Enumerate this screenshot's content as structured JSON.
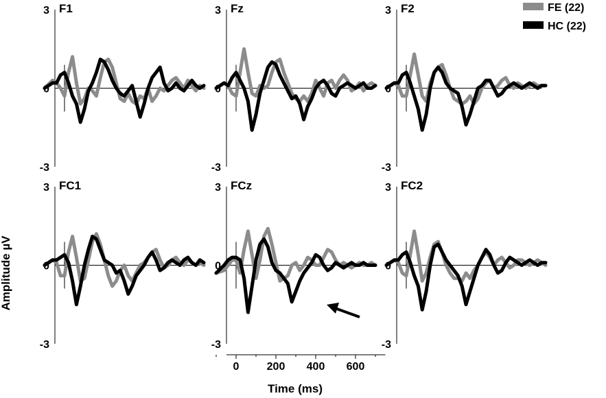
{
  "figure": {
    "ylabel": "Amplitude µV",
    "xlabel": "Time (ms)",
    "legend": [
      {
        "name": "FE (22)",
        "color": "#8c8c8c"
      },
      {
        "name": "HC (22)",
        "color": "#000000"
      }
    ]
  },
  "chart_data": [
    {
      "type": "line",
      "title": "F1",
      "xlim": [
        -100,
        750
      ],
      "ylim": [
        -3,
        3
      ],
      "yticks": [
        "3",
        "0",
        "-3"
      ],
      "series": [
        {
          "name": "FE (22)",
          "color": "#8c8c8c",
          "x": [
            -100,
            -60,
            -40,
            -20,
            0,
            20,
            40,
            60,
            80,
            100,
            120,
            140,
            160,
            180,
            200,
            220,
            240,
            260,
            280,
            300,
            320,
            340,
            360,
            380,
            400,
            420,
            440,
            460,
            480,
            500,
            520,
            540,
            560,
            580,
            600,
            620,
            640,
            660,
            680,
            700
          ],
          "y": [
            0.0,
            0.3,
            0.2,
            0.0,
            -0.3,
            0.6,
            1.2,
            0.2,
            -0.6,
            -0.4,
            0.0,
            -0.1,
            -0.3,
            0.4,
            1.0,
            1.1,
            0.8,
            0.2,
            -0.4,
            -0.5,
            -0.2,
            -0.5,
            -0.6,
            -0.3,
            -0.4,
            0.0,
            -0.5,
            -0.3,
            0.0,
            -0.1,
            0.1,
            0.3,
            0.4,
            0.2,
            0.0,
            0.3,
            0.1,
            -0.1,
            0.1,
            0.0
          ]
        },
        {
          "name": "HC (22)",
          "color": "#000000",
          "x": [
            -100,
            -60,
            -40,
            -20,
            0,
            20,
            40,
            60,
            80,
            100,
            120,
            140,
            160,
            180,
            200,
            220,
            240,
            260,
            280,
            300,
            320,
            340,
            360,
            380,
            400,
            420,
            440,
            460,
            480,
            500,
            520,
            540,
            560,
            580,
            600,
            620,
            640,
            660,
            680,
            700
          ],
          "y": [
            0.0,
            0.2,
            0.2,
            0.5,
            0.6,
            0.2,
            -0.3,
            -0.6,
            -1.3,
            -0.8,
            -0.1,
            0.2,
            0.6,
            1.1,
            1.0,
            0.7,
            0.3,
            0.0,
            -0.2,
            -0.3,
            -0.1,
            0.1,
            -0.5,
            -1.1,
            -0.6,
            0.0,
            0.4,
            0.6,
            0.8,
            0.2,
            -0.1,
            0.0,
            0.2,
            0.0,
            -0.1,
            0.1,
            0.3,
            0.1,
            0.0,
            0.1
          ]
        }
      ]
    },
    {
      "type": "line",
      "title": "Fz",
      "xlim": [
        -100,
        750
      ],
      "ylim": [
        -3,
        3
      ],
      "yticks": [
        "3",
        "0",
        "-3"
      ],
      "series": [
        {
          "name": "FE (22)",
          "color": "#8c8c8c",
          "x": [
            -100,
            -60,
            -40,
            -20,
            0,
            20,
            40,
            60,
            80,
            100,
            120,
            140,
            160,
            180,
            200,
            220,
            240,
            260,
            280,
            300,
            320,
            340,
            360,
            380,
            400,
            420,
            440,
            460,
            480,
            500,
            520,
            540,
            560,
            580,
            600,
            620,
            640,
            660,
            680,
            700
          ],
          "y": [
            0.0,
            0.2,
            0.1,
            -0.2,
            -0.3,
            0.6,
            1.5,
            0.6,
            -0.2,
            -0.3,
            0.1,
            0.0,
            0.1,
            0.6,
            1.0,
            1.1,
            0.6,
            0.2,
            -0.2,
            -0.4,
            -0.5,
            -0.3,
            -0.5,
            -0.2,
            0.3,
            0.0,
            -0.3,
            0.2,
            0.3,
            0.0,
            0.3,
            0.5,
            0.3,
            -0.1,
            0.0,
            0.2,
            -0.1,
            0.1,
            0.2,
            0.1
          ]
        },
        {
          "name": "HC (22)",
          "color": "#000000",
          "x": [
            -100,
            -60,
            -40,
            -20,
            0,
            20,
            40,
            60,
            80,
            100,
            120,
            140,
            160,
            180,
            200,
            220,
            240,
            260,
            280,
            300,
            320,
            340,
            360,
            380,
            400,
            420,
            440,
            460,
            480,
            500,
            520,
            540,
            560,
            580,
            600,
            620,
            640,
            660,
            680,
            700
          ],
          "y": [
            0.0,
            0.2,
            0.1,
            0.4,
            0.6,
            0.3,
            0.0,
            -0.5,
            -1.6,
            -1.0,
            -0.2,
            0.3,
            0.8,
            1.0,
            0.9,
            0.5,
            0.2,
            -0.1,
            -0.4,
            -0.3,
            -0.6,
            -1.2,
            -0.7,
            -0.4,
            0.0,
            0.2,
            0.3,
            0.1,
            -0.2,
            -0.3,
            0.0,
            0.1,
            0.2,
            0.1,
            0.0,
            0.1,
            0.2,
            0.0,
            0.0,
            0.1
          ]
        }
      ]
    },
    {
      "type": "line",
      "title": "F2",
      "xlim": [
        -100,
        750
      ],
      "ylim": [
        -3,
        3
      ],
      "yticks": [
        "3",
        "0",
        "-3"
      ],
      "series": [
        {
          "name": "FE (22)",
          "color": "#8c8c8c",
          "x": [
            -100,
            -60,
            -40,
            -20,
            0,
            20,
            40,
            60,
            80,
            100,
            120,
            140,
            160,
            180,
            200,
            220,
            240,
            260,
            280,
            300,
            320,
            340,
            360,
            380,
            400,
            420,
            440,
            460,
            480,
            500,
            520,
            540,
            560,
            580,
            600,
            620,
            640,
            660,
            680,
            700
          ],
          "y": [
            0.0,
            0.2,
            0.1,
            -0.3,
            -0.3,
            0.5,
            1.3,
            0.5,
            -0.3,
            -0.5,
            0.2,
            0.6,
            0.8,
            0.9,
            0.5,
            0.0,
            -0.4,
            -0.5,
            -0.6,
            -0.5,
            -0.3,
            -0.6,
            -0.4,
            0.0,
            0.2,
            0.3,
            0.0,
            0.1,
            0.3,
            0.4,
            0.1,
            0.0,
            0.2,
            0.1,
            0.0,
            0.1,
            0.2,
            0.1,
            0.1,
            0.1
          ]
        },
        {
          "name": "HC (22)",
          "color": "#000000",
          "x": [
            -100,
            -60,
            -40,
            -20,
            0,
            20,
            40,
            60,
            80,
            100,
            120,
            140,
            160,
            180,
            200,
            220,
            240,
            260,
            280,
            300,
            320,
            340,
            360,
            380,
            400,
            420,
            440,
            460,
            480,
            500,
            520,
            540,
            560,
            580,
            600,
            620,
            640,
            660,
            680,
            700
          ],
          "y": [
            0.0,
            0.2,
            0.2,
            0.5,
            0.6,
            0.2,
            -0.3,
            -0.8,
            -1.6,
            -1.0,
            0.0,
            0.6,
            0.8,
            0.6,
            0.2,
            0.0,
            -0.1,
            -0.2,
            -0.7,
            -1.4,
            -1.0,
            -0.5,
            0.0,
            0.1,
            0.3,
            0.3,
            0.0,
            -0.3,
            -0.2,
            0.0,
            0.1,
            0.2,
            0.1,
            0.0,
            0.1,
            0.2,
            0.1,
            0.0,
            0.1,
            0.1
          ]
        }
      ]
    },
    {
      "type": "line",
      "title": "FC1",
      "xlim": [
        -100,
        750
      ],
      "ylim": [
        -3,
        3
      ],
      "yticks": [
        "3",
        "0",
        "-3"
      ],
      "series": [
        {
          "name": "FE (22)",
          "color": "#8c8c8c",
          "x": [
            -100,
            -60,
            -40,
            -20,
            0,
            20,
            40,
            60,
            80,
            100,
            120,
            140,
            160,
            180,
            200,
            220,
            240,
            260,
            280,
            300,
            320,
            340,
            360,
            380,
            400,
            420,
            440,
            460,
            480,
            500,
            520,
            540,
            560,
            580,
            600,
            620,
            640,
            660,
            680,
            700
          ],
          "y": [
            0.0,
            0.2,
            0.1,
            -0.4,
            -0.4,
            0.5,
            1.1,
            0.3,
            -0.6,
            -0.5,
            0.2,
            0.9,
            1.2,
            0.8,
            0.2,
            -0.4,
            -0.8,
            -0.6,
            -0.2,
            0.0,
            -0.4,
            -0.6,
            -0.3,
            0.0,
            0.1,
            0.3,
            0.5,
            0.6,
            0.2,
            -0.1,
            0.0,
            0.2,
            0.3,
            0.1,
            0.0,
            0.2,
            0.1,
            0.0,
            0.1,
            0.0
          ]
        },
        {
          "name": "HC (22)",
          "color": "#000000",
          "x": [
            -100,
            -60,
            -40,
            -20,
            0,
            20,
            40,
            60,
            80,
            100,
            120,
            140,
            160,
            180,
            200,
            220,
            240,
            260,
            280,
            300,
            320,
            340,
            360,
            380,
            400,
            420,
            440,
            460,
            480,
            500,
            520,
            540,
            560,
            580,
            600,
            620,
            640,
            660,
            680,
            700
          ],
          "y": [
            0.0,
            0.2,
            0.2,
            0.3,
            0.4,
            0.1,
            -0.6,
            -1.5,
            -0.8,
            0.0,
            0.6,
            1.1,
            1.0,
            0.6,
            0.2,
            0.1,
            0.0,
            -0.3,
            -0.2,
            -0.6,
            -1.1,
            -0.8,
            -0.4,
            -0.2,
            0.0,
            0.3,
            0.5,
            0.2,
            -0.2,
            -0.1,
            0.1,
            0.2,
            0.1,
            0.0,
            0.2,
            0.3,
            0.1,
            0.0,
            0.2,
            0.1
          ]
        }
      ]
    },
    {
      "type": "line",
      "title": "FCz",
      "xlim": [
        -100,
        750
      ],
      "ylim": [
        -3,
        3
      ],
      "yticks": [
        "3",
        "0",
        "-3"
      ],
      "xticks": [
        0,
        200,
        400,
        600
      ],
      "xlabel": "Time (ms)",
      "series": [
        {
          "name": "FE (22)",
          "color": "#8c8c8c",
          "x": [
            -100,
            -60,
            -40,
            -20,
            0,
            20,
            40,
            60,
            80,
            100,
            120,
            140,
            160,
            180,
            200,
            220,
            240,
            260,
            280,
            300,
            320,
            340,
            360,
            380,
            400,
            420,
            440,
            460,
            480,
            500,
            520,
            540,
            560,
            580,
            600,
            620,
            640,
            660,
            680,
            700
          ],
          "y": [
            -0.3,
            -0.2,
            0.0,
            0.2,
            0.2,
            -0.3,
            0.6,
            1.3,
            0.4,
            -0.5,
            0.2,
            1.1,
            1.4,
            0.8,
            0.1,
            -0.6,
            -0.5,
            -0.4,
            0.0,
            0.1,
            -0.2,
            0.0,
            0.3,
            0.2,
            0.0,
            0.0,
            0.3,
            0.6,
            0.5,
            0.2,
            0.0,
            0.1,
            0.0,
            -0.1,
            0.0,
            0.1,
            0.0,
            0.0,
            0.1,
            0.0
          ]
        },
        {
          "name": "HC (22)",
          "color": "#000000",
          "x": [
            -100,
            -60,
            -40,
            -20,
            0,
            20,
            40,
            60,
            80,
            100,
            120,
            140,
            160,
            180,
            200,
            220,
            240,
            260,
            280,
            300,
            320,
            340,
            360,
            380,
            400,
            420,
            440,
            460,
            480,
            500,
            520,
            540,
            560,
            580,
            600,
            620,
            640,
            660,
            680,
            700
          ],
          "y": [
            -0.3,
            0.0,
            0.2,
            0.3,
            0.3,
            0.2,
            -0.5,
            -1.8,
            -0.8,
            0.2,
            0.8,
            1.0,
            0.7,
            0.1,
            -0.2,
            -0.3,
            -0.5,
            -0.7,
            -1.4,
            -1.0,
            -0.6,
            -0.3,
            -0.1,
            0.1,
            0.4,
            0.3,
            0.0,
            -0.2,
            -0.1,
            0.1,
            0.0,
            -0.1,
            0.0,
            0.1,
            0.0,
            0.0,
            0.1,
            0.0,
            0.0,
            0.0
          ]
        }
      ]
    },
    {
      "type": "line",
      "title": "FC2",
      "xlim": [
        -100,
        750
      ],
      "ylim": [
        -3,
        3
      ],
      "yticks": [
        "3",
        "0",
        "-3"
      ],
      "series": [
        {
          "name": "FE (22)",
          "color": "#8c8c8c",
          "x": [
            -100,
            -60,
            -40,
            -20,
            0,
            20,
            40,
            60,
            80,
            100,
            120,
            140,
            160,
            180,
            200,
            220,
            240,
            260,
            280,
            300,
            320,
            340,
            360,
            380,
            400,
            420,
            440,
            460,
            480,
            500,
            520,
            540,
            560,
            580,
            600,
            620,
            640,
            660,
            680,
            700
          ],
          "y": [
            0.0,
            0.2,
            0.1,
            -0.3,
            -0.4,
            0.4,
            1.3,
            0.4,
            -0.6,
            -0.3,
            0.3,
            0.8,
            0.9,
            0.5,
            0.0,
            -0.3,
            -0.5,
            -0.5,
            -0.6,
            -0.3,
            -0.5,
            -0.2,
            0.0,
            0.3,
            0.5,
            0.3,
            0.0,
            0.2,
            0.3,
            0.1,
            -0.1,
            0.0,
            0.2,
            0.2,
            0.1,
            0.0,
            0.1,
            0.2,
            0.1,
            0.0
          ]
        },
        {
          "name": "HC (22)",
          "color": "#000000",
          "x": [
            -100,
            -60,
            -40,
            -20,
            0,
            20,
            40,
            60,
            80,
            100,
            120,
            140,
            160,
            180,
            200,
            220,
            240,
            260,
            280,
            300,
            320,
            340,
            360,
            380,
            400,
            420,
            440,
            460,
            480,
            500,
            520,
            540,
            560,
            580,
            600,
            620,
            640,
            660,
            680,
            700
          ],
          "y": [
            0.0,
            0.2,
            0.2,
            0.4,
            0.5,
            0.1,
            -0.4,
            -0.8,
            -1.7,
            -1.0,
            0.0,
            0.7,
            0.8,
            0.5,
            0.2,
            0.0,
            -0.2,
            -0.4,
            -0.8,
            -1.5,
            -1.0,
            -0.5,
            0.0,
            0.3,
            0.6,
            0.4,
            0.0,
            -0.3,
            -0.2,
            0.1,
            0.3,
            0.2,
            0.1,
            0.0,
            0.1,
            0.2,
            0.1,
            0.0,
            0.1,
            0.1
          ]
        }
      ]
    }
  ]
}
